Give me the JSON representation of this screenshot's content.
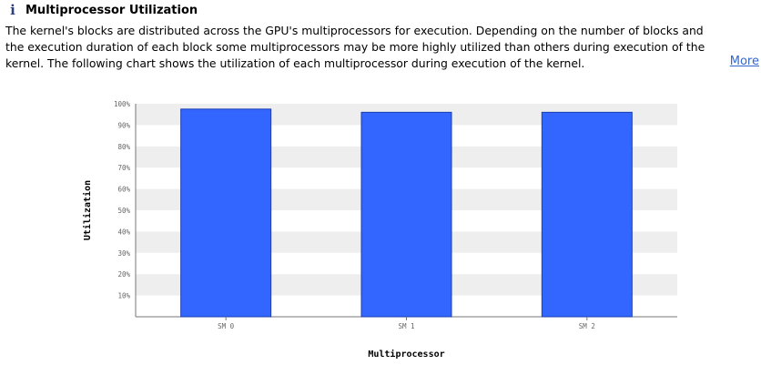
{
  "header": {
    "icon": "info-icon",
    "title": "Multiprocessor Utilization"
  },
  "description": "The kernel's blocks are distributed across the GPU's multiprocessors for execution. Depending on the number of blocks and the execution duration of each block some multiprocessors may be more highly utilized than others during execution of the kernel. The following chart shows the utilization of each multiprocessor during execution of the kernel.",
  "more_link": "More",
  "chart_data": {
    "type": "bar",
    "categories": [
      "SM 0",
      "SM 1",
      "SM 2"
    ],
    "values": [
      97.5,
      96,
      96
    ],
    "xlabel": "Multiprocessor",
    "ylabel": "Utilization",
    "ylim": [
      0,
      100
    ],
    "yticks": [
      "10%",
      "20%",
      "30%",
      "40%",
      "50%",
      "60%",
      "70%",
      "80%",
      "90%",
      "100%"
    ],
    "grid": "alternating-bands",
    "bar_color": "#3366ff",
    "band_color": "#eeeeee"
  }
}
